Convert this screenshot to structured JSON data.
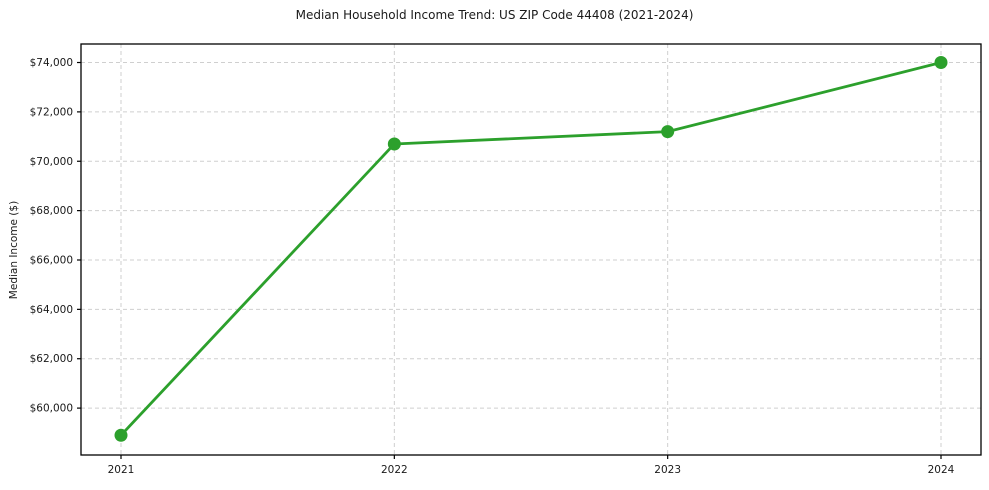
{
  "chart_data": {
    "type": "line",
    "title": "Median Household Income Trend: US ZIP Code 44408 (2021-2024)",
    "xlabel": "",
    "ylabel": "Median Income ($)",
    "categories": [
      "2021",
      "2022",
      "2023",
      "2024"
    ],
    "series": [
      {
        "name": "Median Household Income",
        "values": [
          58900,
          70700,
          71200,
          74000
        ]
      }
    ],
    "ylim": [
      58100,
      74750
    ],
    "yticks": [
      {
        "value": 60000,
        "label": "$60,000"
      },
      {
        "value": 62000,
        "label": "$62,000"
      },
      {
        "value": 64000,
        "label": "$64,000"
      },
      {
        "value": 66000,
        "label": "$66,000"
      },
      {
        "value": 68000,
        "label": "$68,000"
      },
      {
        "value": 70000,
        "label": "$70,000"
      },
      {
        "value": 72000,
        "label": "$72,000"
      },
      {
        "value": 74000,
        "label": "$74,000"
      }
    ],
    "grid": true,
    "grid_style": "dashed",
    "legend_position": "none",
    "line_color": "#2ca02c",
    "marker": "circle",
    "grid_color": "#cfcfcf",
    "axis_color": "#000000",
    "background_color": "#ffffff"
  }
}
